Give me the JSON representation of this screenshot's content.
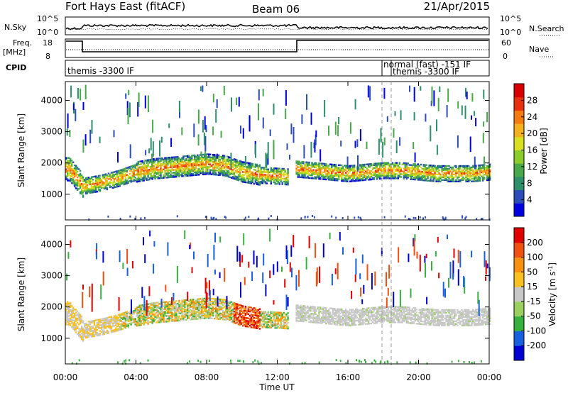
{
  "header": {
    "radar": "Fort Hays East (fitACF)",
    "beam": "Beam 06",
    "date": "21/Apr/2015"
  },
  "top_panels": {
    "nsky_label": "N.Sky",
    "nsky_ticks": [
      "10^5",
      "10^0"
    ],
    "nsearch_label": "N.Search",
    "nsearch_ticks": [
      "10^5",
      "10^0"
    ],
    "freq_label": "Freq.",
    "freq_unit": "[MHz]",
    "freq_ticks": [
      "18",
      "8"
    ],
    "nave_label": "Nave",
    "nave_ticks": [
      "60",
      "0"
    ],
    "cpid_label": "CPID",
    "cpid_texts": [
      "themis -3300 IF",
      "normal (fast) -151 IF",
      "themis -3300 IF"
    ]
  },
  "chart_data": [
    {
      "type": "heatmap",
      "title": "",
      "xlabel": "Time UT",
      "ylabel": "Slant Range [km]",
      "x_ticks": [
        "00:00",
        "04:00",
        "08:00",
        "12:00",
        "16:00",
        "20:00",
        "00:00"
      ],
      "y_ticks": [
        "1000",
        "2000",
        "3000",
        "4000"
      ],
      "xlim_hours": [
        0,
        24
      ],
      "ylim_km": [
        180,
        4600
      ],
      "colorbar_label": "Power [dB]",
      "colorbar_ticks": [
        "28",
        "24",
        "20",
        "16",
        "12",
        "8",
        "4"
      ],
      "colorbar_colors": [
        "#0000e0",
        "#2c4db8",
        "#2f8f6a",
        "#49a84a",
        "#8bcc2a",
        "#d8e020",
        "#f5b020",
        "#f57a10",
        "#e83010",
        "#d80000"
      ],
      "bands": [
        {
          "name": "main",
          "t": [
            0.2,
            1.0,
            2.0,
            3.0,
            4.0,
            5.0,
            6.0,
            7.0,
            8.0,
            9.0,
            10.0,
            11.0,
            12.6
          ],
          "r": [
            1800,
            1250,
            1350,
            1500,
            1700,
            1800,
            1850,
            1900,
            1950,
            1900,
            1700,
            1600,
            1550
          ]
        },
        {
          "name": "afternoon",
          "t": [
            13.0,
            14.0,
            15.0,
            16.0,
            17.0,
            18.0,
            19.0,
            20.0,
            21.0,
            22.0,
            23.0,
            24.0
          ],
          "r": [
            1800,
            1750,
            1700,
            1650,
            1700,
            1750,
            1750,
            1700,
            1650,
            1650,
            1650,
            1700
          ]
        }
      ]
    },
    {
      "type": "heatmap",
      "title": "",
      "xlabel": "Time UT",
      "ylabel": "Slant Range [km]",
      "x_ticks": [
        "00:00",
        "04:00",
        "08:00",
        "12:00",
        "16:00",
        "20:00",
        "00:00"
      ],
      "y_ticks": [
        "1000",
        "2000",
        "3000",
        "4000"
      ],
      "xlim_hours": [
        0,
        24
      ],
      "ylim_km": [
        180,
        4600
      ],
      "colorbar_label": "Velocity [m s",
      "colorbar_ticks": [
        "200",
        "100",
        "50",
        "15",
        "-15",
        "-50",
        "-100",
        "-200"
      ],
      "colorbar_colors": [
        "#0000d0",
        "#1860e0",
        "#38b040",
        "#9ad060",
        "#c8c8c8",
        "#f8c020",
        "#f89010",
        "#f05010",
        "#e00000"
      ]
    }
  ]
}
